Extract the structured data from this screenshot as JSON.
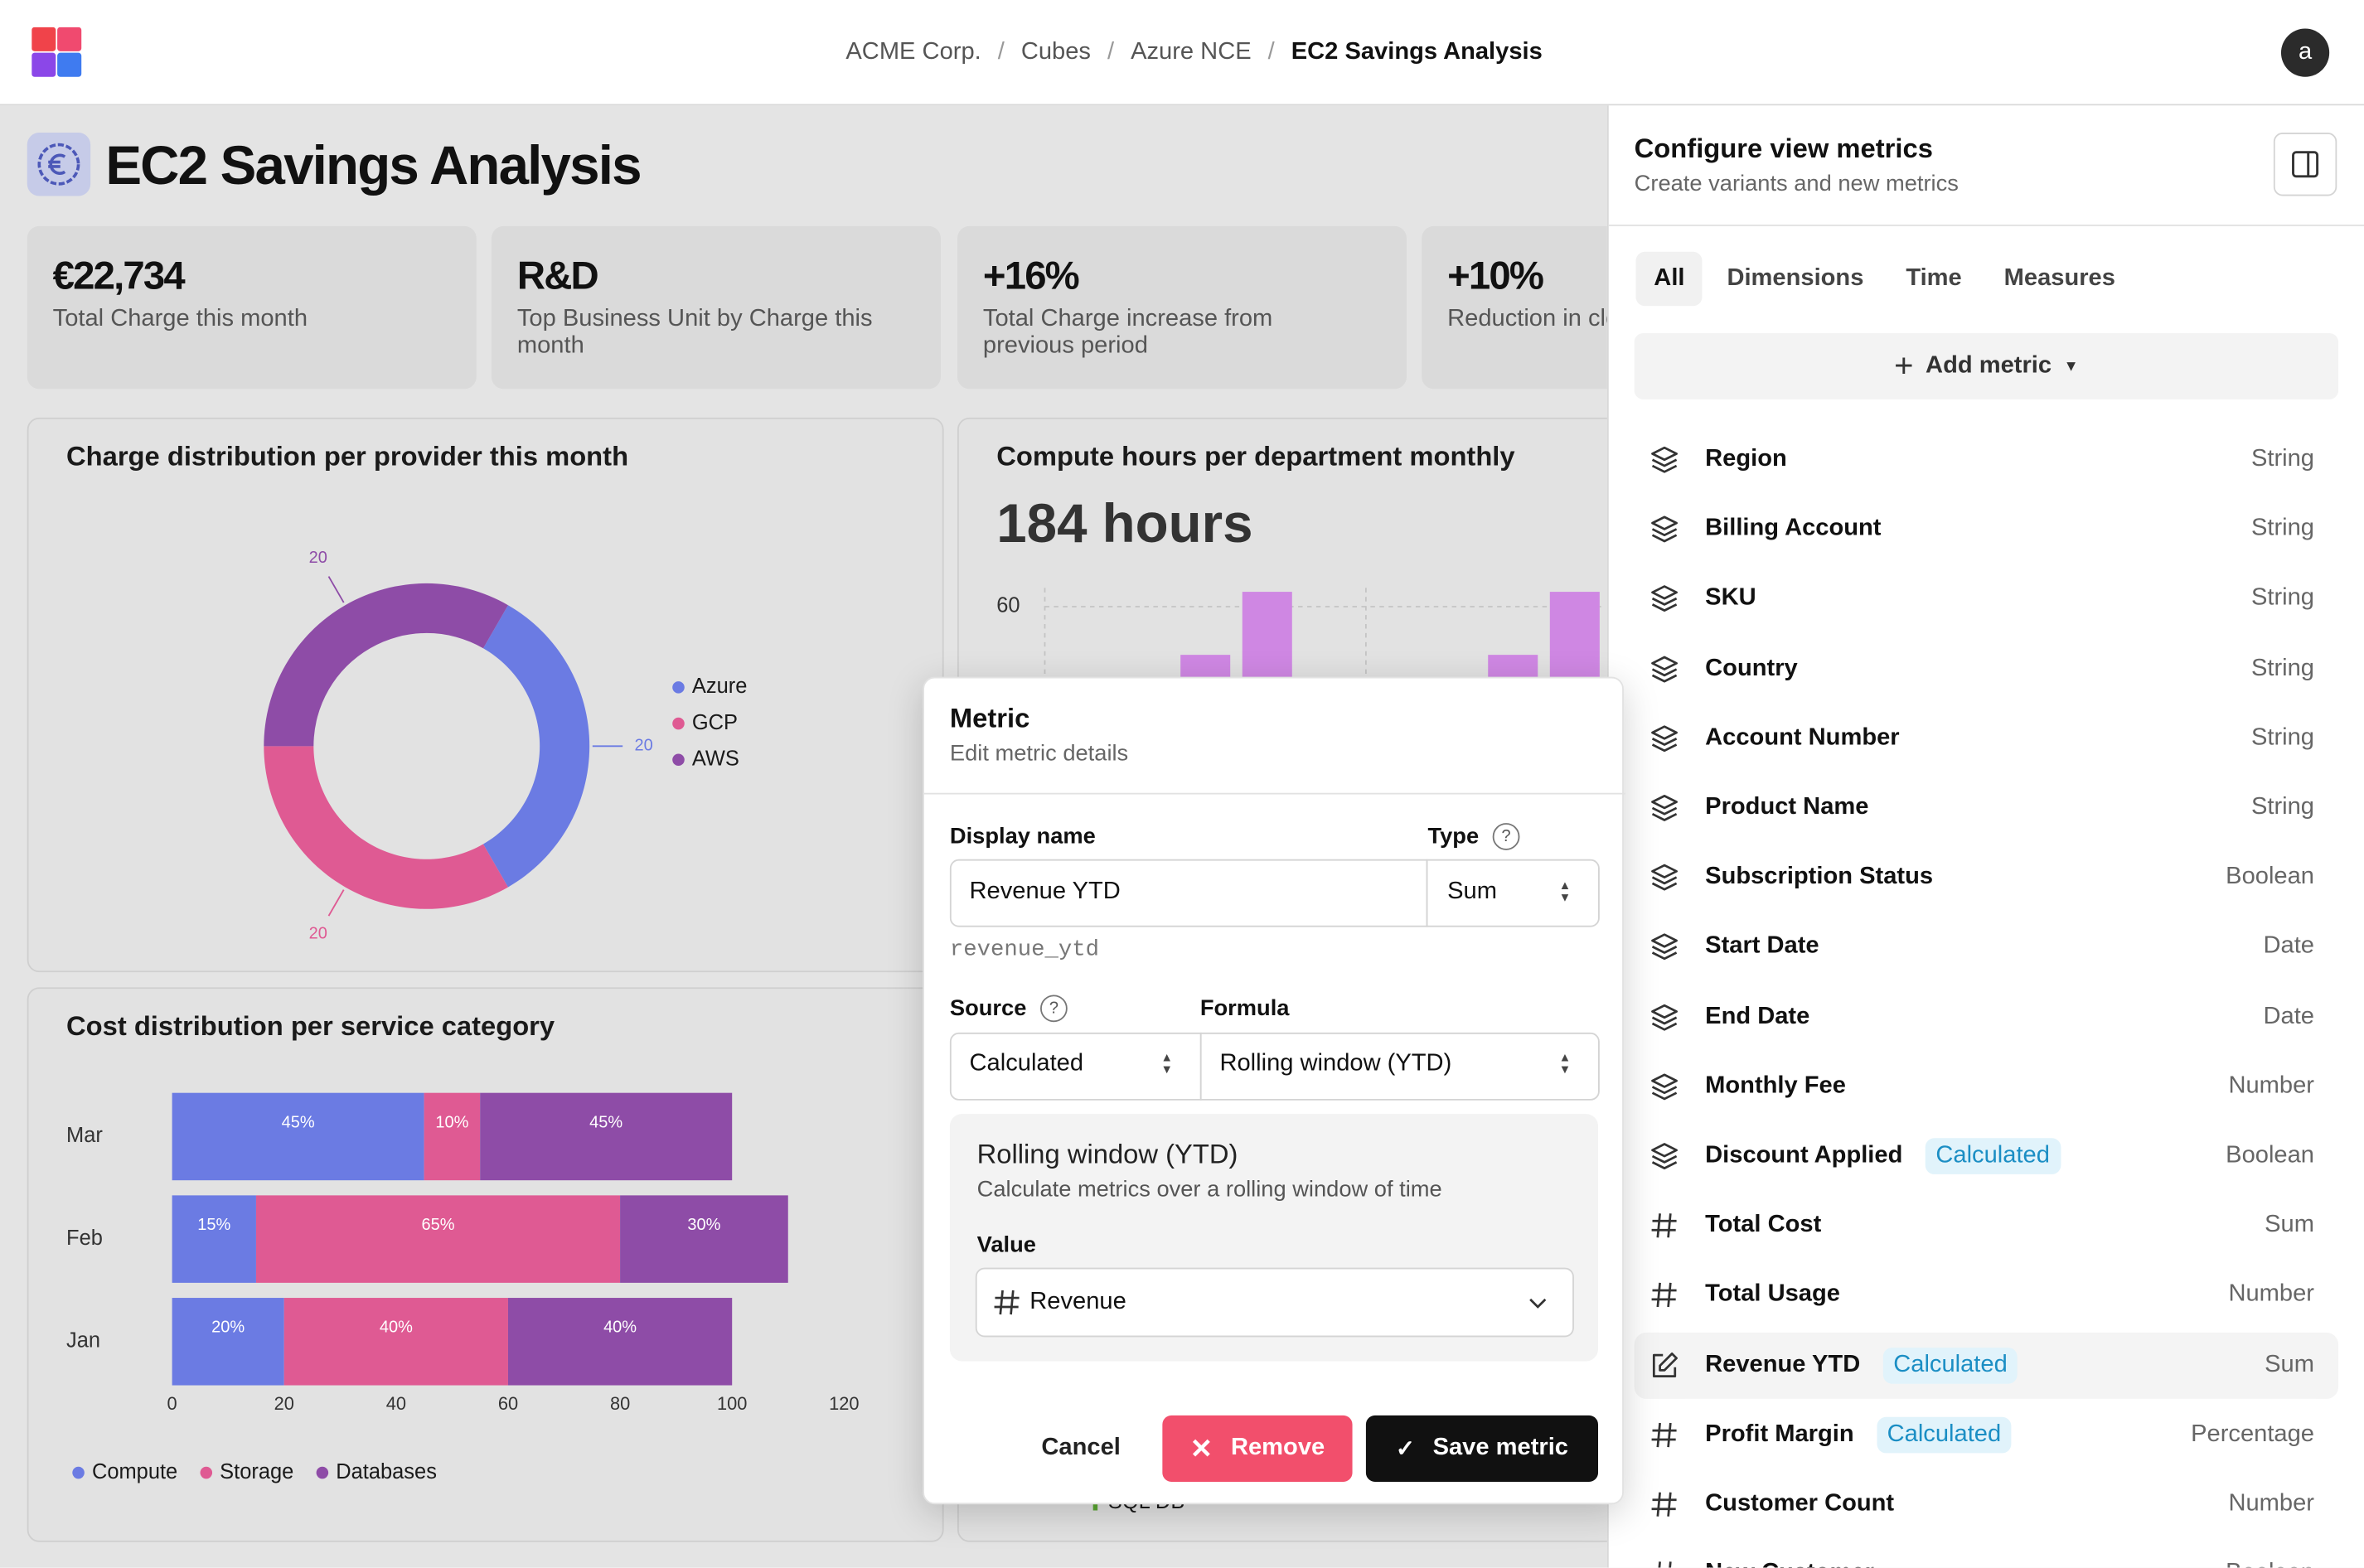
{
  "header": {
    "breadcrumbs": [
      "ACME Corp.",
      "Cubes",
      "Azure NCE",
      "EC2 Savings Analysis"
    ],
    "avatar": "a"
  },
  "page_title": "EC2 Savings Analysis",
  "kpis": [
    {
      "value": "€22,734",
      "label": "Total Charge this month"
    },
    {
      "value": "R&D",
      "label": "Top Business Unit by Charge this month"
    },
    {
      "value": "+16%",
      "label": "Total Charge increase from previous period"
    },
    {
      "value": "+10%",
      "label": "Reduction in cloud costs"
    }
  ],
  "chart_data": [
    {
      "type": "pie",
      "title": "Charge distribution per provider this month",
      "categories": [
        "Azure",
        "GCP",
        "AWS"
      ],
      "values": [
        20,
        20,
        20
      ],
      "colors": [
        "#6b7be3",
        "#df5a93",
        "#8e4ca7"
      ],
      "legend": "right"
    },
    {
      "type": "bar",
      "orientation": "horizontal",
      "stacked": true,
      "title": "Cost distribution per service category",
      "categories": [
        "Mar",
        "Feb",
        "Jan"
      ],
      "series": [
        {
          "name": "Compute",
          "color": "#6b7be3",
          "values": [
            45,
            15,
            20
          ],
          "value_labels": [
            "45%",
            "15%",
            "20%"
          ]
        },
        {
          "name": "Storage",
          "color": "#df5a93",
          "values": [
            10,
            65,
            40
          ],
          "value_labels": [
            "10%",
            "65%",
            "40%"
          ]
        },
        {
          "name": "Databases",
          "color": "#8e4ca7",
          "values": [
            45,
            30,
            40
          ],
          "value_labels": [
            "45%",
            "30%",
            "40%"
          ]
        }
      ],
      "xlim": [
        -10,
        130
      ],
      "xticks": [
        0,
        20,
        40,
        60,
        80,
        100,
        120
      ],
      "legend": "bottom"
    },
    {
      "type": "bar",
      "title": "Compute hours per department monthly",
      "subtitle": "184 hours",
      "categories": [
        null,
        null,
        null,
        null
      ],
      "values": [
        47,
        64,
        47,
        64
      ],
      "color": "#cf87e3",
      "ylim": [
        0,
        64
      ],
      "yticks": [
        60
      ],
      "grid": true,
      "annotations": [
        "SQL DB"
      ]
    }
  ],
  "panel": {
    "title": "Configure view metrics",
    "subtitle": "Create variants and new metrics",
    "tabs": [
      "All",
      "Dimensions",
      "Time",
      "Measures"
    ],
    "active_tab": 0,
    "add_button": "Add metric",
    "metrics": [
      {
        "name": "Region",
        "type": "String",
        "icon": "dimension"
      },
      {
        "name": "Billing Account",
        "type": "String",
        "icon": "dimension"
      },
      {
        "name": "SKU",
        "type": "String",
        "icon": "dimension"
      },
      {
        "name": "Country",
        "type": "String",
        "icon": "dimension"
      },
      {
        "name": "Account Number",
        "type": "String",
        "icon": "dimension"
      },
      {
        "name": "Product Name",
        "type": "String",
        "icon": "dimension"
      },
      {
        "name": "Subscription Status",
        "type": "Boolean",
        "icon": "dimension"
      },
      {
        "name": "Start Date",
        "type": "Date",
        "icon": "dimension"
      },
      {
        "name": "End Date",
        "type": "Date",
        "icon": "dimension"
      },
      {
        "name": "Monthly Fee",
        "type": "Number",
        "icon": "dimension"
      },
      {
        "name": "Discount Applied",
        "badge": "Calculated",
        "type": "Boolean",
        "icon": "dimension"
      },
      {
        "name": "Total Cost",
        "type": "Sum",
        "icon": "measure"
      },
      {
        "name": "Total Usage",
        "type": "Number",
        "icon": "measure"
      },
      {
        "name": "Revenue YTD",
        "badge": "Calculated",
        "type": "Sum",
        "icon": "edit",
        "selected": true
      },
      {
        "name": "Profit Margin",
        "badge": "Calculated",
        "type": "Percentage",
        "icon": "measure"
      },
      {
        "name": "Customer Count",
        "type": "Number",
        "icon": "measure"
      },
      {
        "name": "New Customer",
        "type": "Boolean",
        "icon": "measure"
      }
    ]
  },
  "modal": {
    "title": "Metric",
    "subtitle": "Edit metric details",
    "display_name_label": "Display name",
    "display_name": "Revenue YTD",
    "type_label": "Type",
    "type": "Sum",
    "slug": "revenue_ytd",
    "source_label": "Source",
    "source": "Calculated",
    "formula_label": "Formula",
    "formula": "Rolling window (YTD)",
    "window": {
      "title": "Rolling window (YTD)",
      "description": "Calculate metrics over a rolling window of time",
      "value_label": "Value",
      "value": "Revenue"
    },
    "buttons": {
      "cancel": "Cancel",
      "remove": "Remove",
      "save": "Save metric"
    }
  }
}
